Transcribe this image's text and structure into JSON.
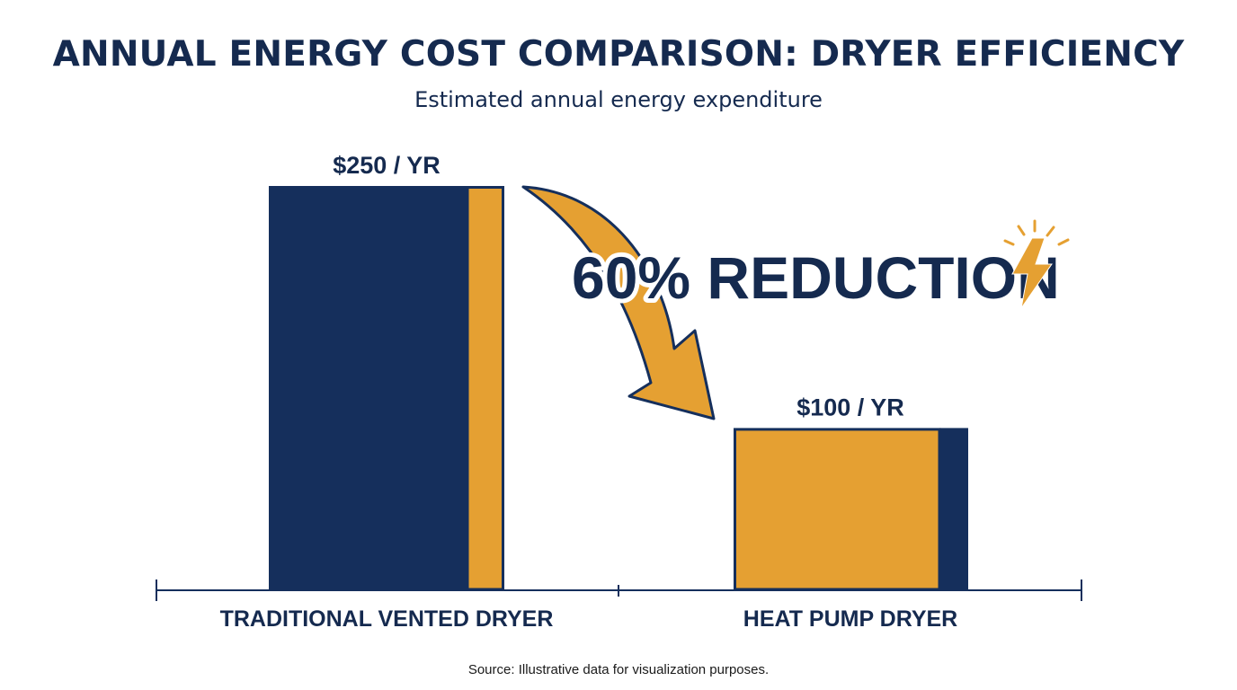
{
  "title": "ANNUAL ENERGY COST COMPARISON: DRYER EFFICIENCY",
  "subtitle": "Estimated annual energy expenditure",
  "source": "Source: Illustrative data for visualization purposes.",
  "colors": {
    "navy": "#152f5c",
    "orange": "#e5a032",
    "text": "#152a4f"
  },
  "icons": {
    "arrow": "curved-arrow-icon",
    "bolt": "lightning-bolt-icon"
  },
  "chart_data": {
    "type": "bar",
    "title": "ANNUAL ENERGY COST COMPARISON: DRYER EFFICIENCY",
    "subtitle": "Estimated annual energy expenditure",
    "categories": [
      "TRADITIONAL VENTED DRYER",
      "HEAT PUMP DRYER"
    ],
    "values": [
      250,
      100
    ],
    "value_labels": [
      "$250 / YR",
      "$100 / YR"
    ],
    "xlabel": "",
    "ylabel": "",
    "ylim": [
      0,
      250
    ],
    "grid": false,
    "legend": "none",
    "annotation": "60% REDUCTION"
  }
}
